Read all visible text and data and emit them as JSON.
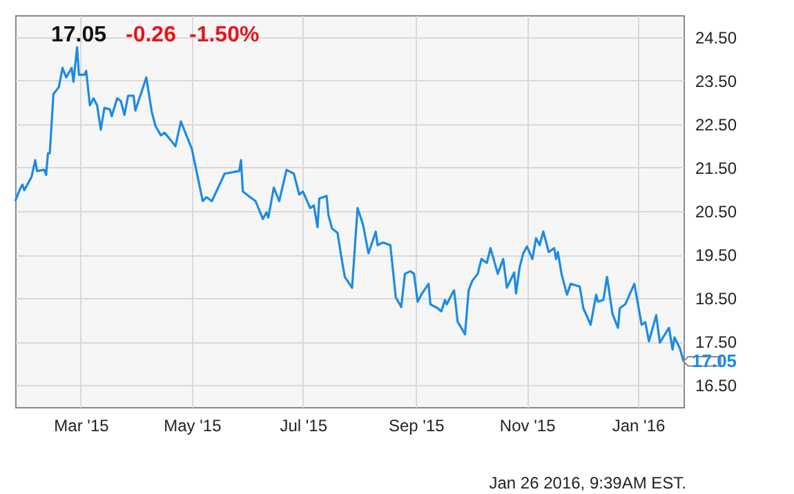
{
  "chart_data": {
    "type": "line",
    "x": [
      "2015-01-24",
      "2015-01-27",
      "2015-01-28",
      "2015-01-29",
      "2015-02-02",
      "2015-02-04",
      "2015-02-05",
      "2015-02-09",
      "2015-02-10",
      "2015-02-11",
      "2015-02-12",
      "2015-02-14",
      "2015-02-17",
      "2015-02-19",
      "2015-02-21",
      "2015-02-24",
      "2015-02-25",
      "2015-02-27",
      "2015-02-28",
      "2015-03-03",
      "2015-03-04",
      "2015-03-06",
      "2015-03-08",
      "2015-03-10",
      "2015-03-12",
      "2015-03-14",
      "2015-03-17",
      "2015-03-18",
      "2015-03-21",
      "2015-03-23",
      "2015-03-25",
      "2015-03-27",
      "2015-03-30",
      "2015-03-31",
      "2015-04-03",
      "2015-04-06",
      "2015-04-09",
      "2015-04-11",
      "2015-04-14",
      "2015-04-16",
      "2015-04-19",
      "2015-04-22",
      "2015-04-25",
      "2015-04-28",
      "2015-05-01",
      "2015-05-07",
      "2015-05-09",
      "2015-05-12",
      "2015-05-19",
      "2015-05-27",
      "2015-05-28",
      "2015-05-29",
      "2015-06-02",
      "2015-06-05",
      "2015-06-09",
      "2015-06-11",
      "2015-06-12",
      "2015-06-15",
      "2015-06-18",
      "2015-06-22",
      "2015-06-26",
      "2015-06-29",
      "2015-07-01",
      "2015-07-05",
      "2015-07-07",
      "2015-07-09",
      "2015-07-10",
      "2015-07-14",
      "2015-07-15",
      "2015-07-17",
      "2015-07-20",
      "2015-07-22",
      "2015-07-24",
      "2015-07-28",
      "2015-07-31",
      "2015-08-03",
      "2015-08-06",
      "2015-08-10",
      "2015-08-11",
      "2015-08-14",
      "2015-08-18",
      "2015-08-21",
      "2015-08-24",
      "2015-08-26",
      "2015-08-29",
      "2015-08-31",
      "2015-09-02",
      "2015-09-04",
      "2015-09-08",
      "2015-09-09",
      "2015-09-13",
      "2015-09-15",
      "2015-09-17",
      "2015-09-18",
      "2015-09-21",
      "2015-09-22",
      "2015-09-24",
      "2015-09-25",
      "2015-09-28",
      "2015-09-30",
      "2015-10-02",
      "2015-10-05",
      "2015-10-07",
      "2015-10-10",
      "2015-10-12",
      "2015-10-16",
      "2015-10-19",
      "2015-10-21",
      "2015-10-25",
      "2015-10-26",
      "2015-10-28",
      "2015-10-30",
      "2015-11-01",
      "2015-11-04",
      "2015-11-06",
      "2015-11-08",
      "2015-11-10",
      "2015-11-13",
      "2015-11-16",
      "2015-11-17",
      "2015-11-18",
      "2015-11-20",
      "2015-11-23",
      "2015-11-25",
      "2015-11-30",
      "2015-12-02",
      "2015-12-06",
      "2015-12-09",
      "2015-12-10",
      "2015-12-13",
      "2015-12-15",
      "2015-12-18",
      "2015-12-21",
      "2015-12-22",
      "2015-12-25",
      "2015-12-30",
      "2016-01-03",
      "2016-01-05",
      "2016-01-07",
      "2016-01-11",
      "2016-01-13",
      "2016-01-18",
      "2016-01-20",
      "2016-01-21",
      "2016-01-24",
      "2016-01-26"
    ],
    "series": [
      {
        "color": "#1a8be6",
        "values": [
          20.73,
          21.04,
          21.11,
          20.98,
          21.29,
          21.67,
          21.42,
          21.45,
          21.33,
          21.83,
          21.83,
          23.19,
          23.35,
          23.79,
          23.57,
          23.79,
          23.47,
          24.26,
          23.63,
          23.63,
          23.72,
          22.93,
          23.09,
          22.93,
          22.37,
          22.87,
          22.84,
          22.68,
          23.09,
          23.03,
          22.71,
          23.15,
          23.15,
          22.81,
          23.19,
          23.57,
          22.78,
          22.46,
          22.24,
          22.3,
          22.15,
          21.99,
          22.56,
          22.24,
          21.93,
          20.73,
          20.82,
          20.73,
          21.36,
          21.42,
          21.67,
          20.95,
          20.82,
          20.73,
          20.32,
          20.47,
          20.35,
          21.04,
          20.73,
          21.45,
          21.36,
          20.88,
          20.95,
          20.57,
          20.63,
          20.13,
          20.79,
          20.85,
          20.41,
          20.1,
          20.0,
          19.47,
          18.99,
          18.74,
          20.57,
          20.19,
          19.53,
          20.03,
          19.72,
          19.78,
          19.72,
          18.52,
          18.3,
          19.06,
          19.12,
          19.06,
          18.42,
          18.58,
          18.83,
          18.36,
          18.27,
          18.2,
          18.46,
          18.36,
          18.61,
          18.68,
          17.95,
          17.89,
          17.67,
          18.68,
          18.9,
          19.06,
          19.4,
          19.31,
          19.65,
          19.06,
          19.4,
          18.74,
          19.09,
          18.61,
          19.21,
          19.53,
          19.69,
          19.4,
          19.88,
          19.72,
          20.03,
          19.56,
          19.65,
          19.4,
          19.56,
          19.06,
          18.58,
          18.83,
          18.77,
          18.27,
          17.89,
          18.58,
          18.42,
          18.46,
          18.99,
          18.14,
          17.82,
          18.27,
          18.36,
          18.83,
          17.89,
          17.95,
          17.51,
          18.11,
          17.48,
          17.82,
          17.32,
          17.6,
          17.35,
          17.05
        ]
      }
    ],
    "xlim": [
      "2015-01-24",
      "2016-01-26"
    ],
    "xticks": [
      {
        "value": "2015-03-01",
        "label": "Mar '15"
      },
      {
        "value": "2015-05-01",
        "label": "May '15"
      },
      {
        "value": "2015-07-01",
        "label": "Jul '15"
      },
      {
        "value": "2015-09-01",
        "label": "Sep '15"
      },
      {
        "value": "2015-11-01",
        "label": "Nov '15"
      },
      {
        "value": "2016-01-01",
        "label": "Jan '16"
      }
    ],
    "ylim": [
      16,
      25
    ],
    "yticks": [
      {
        "value": 16.5,
        "label": "16.50"
      },
      {
        "value": 17.5,
        "label": "17.50"
      },
      {
        "value": 18.5,
        "label": "18.50"
      },
      {
        "value": 19.5,
        "label": "19.50"
      },
      {
        "value": 20.5,
        "label": "20.50"
      },
      {
        "value": 21.5,
        "label": "21.50"
      },
      {
        "value": 22.5,
        "label": "22.50"
      },
      {
        "value": 23.5,
        "label": "23.50"
      },
      {
        "value": 24.5,
        "label": "24.50"
      }
    ],
    "grid": true,
    "annotations": [
      "17.05",
      "-0.26",
      "-1.50%",
      {
        "text": "17.05",
        "x": "2016-01-26",
        "y": 17.05
      },
      "Jan 26 2016, 9:39AM EST."
    ]
  }
}
